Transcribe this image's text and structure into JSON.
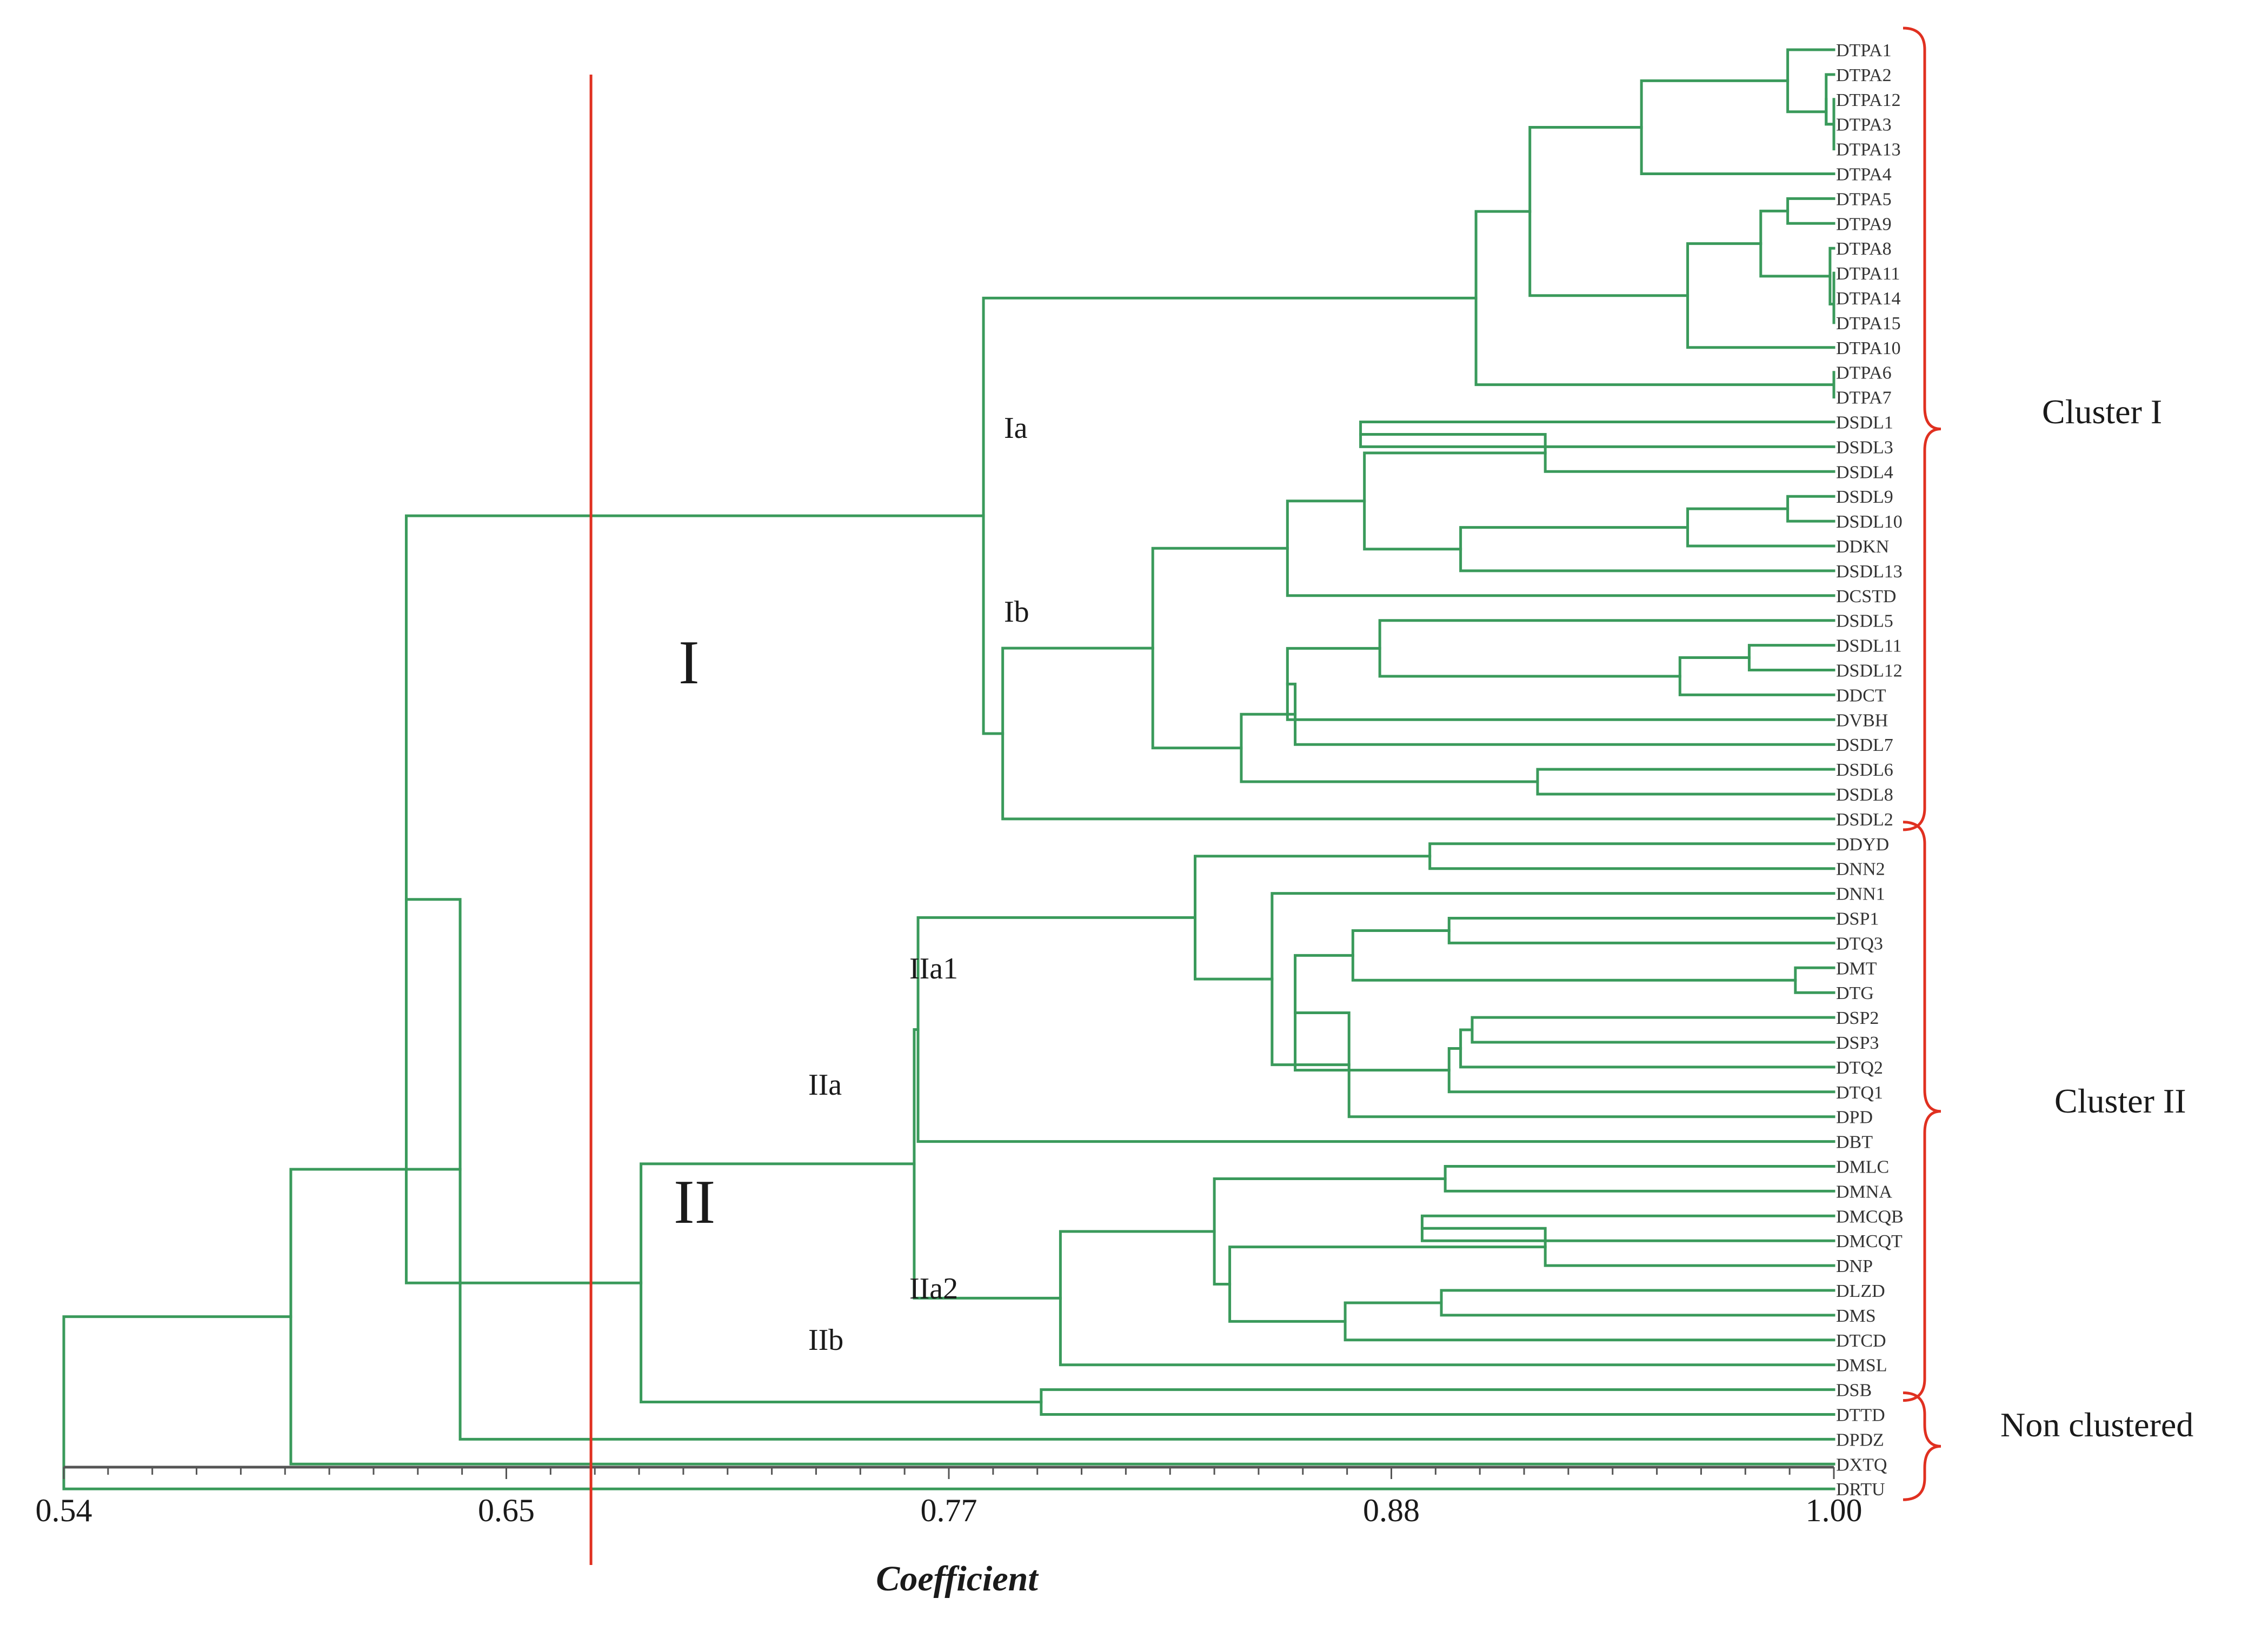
{
  "leaves": [
    "DTPA1",
    "DTPA2",
    "DTPA12",
    "DTPA3",
    "DTPA13",
    "DTPA4",
    "DTPA5",
    "DTPA9",
    "DTPA8",
    "DTPA11",
    "DTPA14",
    "DTPA15",
    "DTPA10",
    "DTPA6",
    "DTPA7",
    "DSDL1",
    "DSDL3",
    "DSDL4",
    "DSDL9",
    "DSDL10",
    "DDKN",
    "DSDL13",
    "DCSTD",
    "DSDL5",
    "DSDL11",
    "DSDL12",
    "DDCT",
    "DVBH",
    "DSDL7",
    "DSDL6",
    "DSDL8",
    "DSDL2",
    "DDYD",
    "DNN2",
    "DNN1",
    "DSP1",
    "DTQ3",
    "DMT",
    "DTG",
    "DSP2",
    "DSP3",
    "DTQ2",
    "DTQ1",
    "DPD",
    "DBT",
    "DMLC",
    "DMNA",
    "DMCQB",
    "DMCQT",
    "DNP",
    "DLZD",
    "DMS",
    "DTCD",
    "DMSL",
    "DSB",
    "DTTD",
    "DPDZ",
    "DXTQ",
    "DRTU"
  ],
  "merges": [
    {
      "a": "DTPA12",
      "b": "DTPA13",
      "c": 1.0
    },
    {
      "a": "DTPA11",
      "b": "DTPA14",
      "c": 1.0
    },
    {
      "a": "DTPA14",
      "b": "DTPA15",
      "c": 1.0
    },
    {
      "a": "DTPA6",
      "b": "DTPA7",
      "c": 1.0
    },
    {
      "a": "DTPA2",
      "b": "DTPA12",
      "c": 0.998
    },
    {
      "a": "DTPA3",
      "b": "DTPA13",
      "c": 0.998
    },
    {
      "a": "DTPA8",
      "b": "DTPA11",
      "c": 0.999
    },
    {
      "a": "DTPA1",
      "b": "DTPA2",
      "c": 0.988
    },
    {
      "a": "DTPA5",
      "b": "DTPA9",
      "c": 0.988
    },
    {
      "a": "DTPA1",
      "b": "DTPA3",
      "c": 0.982
    },
    {
      "a": "DTPA5",
      "b": "DTPA8",
      "c": 0.981
    },
    {
      "a": "DTPA1",
      "b": "DTPA4",
      "c": 0.95
    },
    {
      "a": "DTPA5",
      "b": "DTPA10",
      "c": 0.962
    },
    {
      "a": "DTPA1",
      "b": "DTPA5",
      "c": 0.921
    },
    {
      "a": "DTPA1",
      "b": "DTPA6",
      "c": 0.907
    },
    {
      "a": "DSDL9",
      "b": "DSDL10",
      "c": 0.988
    },
    {
      "a": "DSDL9",
      "b": "DDKN",
      "c": 0.962
    },
    {
      "a": "DSDL1",
      "b": "DSDL3",
      "c": 0.877
    },
    {
      "a": "DSDL3",
      "b": "DSDL4",
      "c": 0.925
    },
    {
      "a": "DSDL9",
      "b": "DSDL13",
      "c": 0.903
    },
    {
      "a": "DSDL1",
      "b": "DSDL9",
      "c": 0.878
    },
    {
      "a": "DSDL1",
      "b": "DCSTD",
      "c": 0.858
    },
    {
      "a": "DSDL11",
      "b": "DSDL12",
      "c": 0.978
    },
    {
      "a": "DSDL11",
      "b": "DDCT",
      "c": 0.96
    },
    {
      "a": "DSDL5",
      "b": "DSDL11",
      "c": 0.882
    },
    {
      "a": "DSDL5",
      "b": "DVBH",
      "c": 0.858
    },
    {
      "a": "DSDL5",
      "b": "DSDL7",
      "c": 0.86
    },
    {
      "a": "DSDL6",
      "b": "DSDL8",
      "c": 0.923
    },
    {
      "a": "DSDL5",
      "b": "DSDL6",
      "c": 0.846
    },
    {
      "a": "DSDL1",
      "b": "DSDL5",
      "c": 0.823
    },
    {
      "a": "DSDL1",
      "b": "DSDL2",
      "c": 0.784
    },
    {
      "a": "DTPA1",
      "b": "DSDL1",
      "c": 0.779
    },
    {
      "a": "DDYD",
      "b": "DNN2",
      "c": 0.895
    },
    {
      "a": "DMT",
      "b": "DTG",
      "c": 0.99
    },
    {
      "a": "DSP1",
      "b": "DTQ3",
      "c": 0.9
    },
    {
      "a": "DSP1",
      "b": "DMT",
      "c": 0.875
    },
    {
      "a": "DSP2",
      "b": "DSP3",
      "c": 0.906
    },
    {
      "a": "DSP2",
      "b": "DTQ2",
      "c": 0.903
    },
    {
      "a": "DTQ2",
      "b": "DTQ1",
      "c": 0.9
    },
    {
      "a": "DSP1",
      "b": "DSP2",
      "c": 0.86
    },
    {
      "a": "DSP1",
      "b": "DPD",
      "c": 0.874
    },
    {
      "a": "DNN1",
      "b": "DSP1",
      "c": 0.854
    },
    {
      "a": "DDYD",
      "b": "DNN1",
      "c": 0.834
    },
    {
      "a": "DDYD",
      "b": "DBT",
      "c": 0.762
    },
    {
      "a": "DMLC",
      "b": "DMNA",
      "c": 0.899
    },
    {
      "a": "DMCQB",
      "b": "DMCQT",
      "c": 0.893
    },
    {
      "a": "DMCQT",
      "b": "DNP",
      "c": 0.925
    },
    {
      "a": "DLZD",
      "b": "DMS",
      "c": 0.898
    },
    {
      "a": "DMS",
      "b": "DTCD",
      "c": 0.873
    },
    {
      "a": "DMCQB",
      "b": "DLZD",
      "c": 0.843
    },
    {
      "a": "DMLC",
      "b": "DMCQB",
      "c": 0.839
    },
    {
      "a": "DMLC",
      "b": "DMSL",
      "c": 0.799
    },
    {
      "a": "DDYD",
      "b": "DMLC",
      "c": 0.761
    },
    {
      "a": "DSB",
      "b": "DTTD",
      "c": 0.794
    },
    {
      "a": "DDYD",
      "b": "DSB",
      "c": 0.69
    },
    {
      "a": "DTPA1",
      "b": "DDYD",
      "c": 0.629
    },
    {
      "a": "DTPA1",
      "b": "DPDZ",
      "c": 0.643
    },
    {
      "a": "DTPA1",
      "b": "DXTQ",
      "c": 0.599
    },
    {
      "a": "DTPA1",
      "b": "DRTU",
      "c": 0.54
    }
  ],
  "axis": {
    "min": 0.54,
    "max": 1.0,
    "ticks": [
      "0.54",
      "0.65",
      "0.77",
      "0.88",
      "1.00"
    ],
    "title": "Coefficient"
  },
  "cut_value": 0.677,
  "clusters": [
    {
      "label": "Cluster I",
      "from": "DTPA1",
      "to": "DSDL2"
    },
    {
      "label": "Cluster II",
      "from": "DDYD",
      "to": "DSB"
    },
    {
      "label": "Non clustered",
      "from": "DTTD",
      "to": "DRTU"
    }
  ],
  "node_labels": {
    "Ia": "Ia",
    "Ib": "Ib",
    "I": "I",
    "IIa1": "IIa1",
    "IIa": "IIa",
    "II": "II",
    "IIa2": "IIa2",
    "IIb": "IIb"
  },
  "colors": {
    "branch": "#3a9a5b",
    "accent": "#e03020"
  }
}
